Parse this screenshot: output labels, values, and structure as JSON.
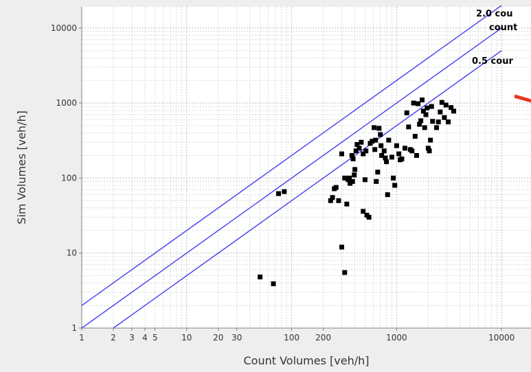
{
  "chart_data": {
    "type": "scatter",
    "xlabel": "Count Volumes [veh/h]",
    "ylabel": "Sim Volumes [veh/h]",
    "x_scale": "log",
    "y_scale": "log",
    "xlim": [
      1,
      20000
    ],
    "ylim": [
      1,
      20000
    ],
    "grid": true,
    "x_ticks": [
      {
        "value": 1,
        "label": "1"
      },
      {
        "value": 2,
        "label": "2"
      },
      {
        "value": 3,
        "label": "3"
      },
      {
        "value": 4,
        "label": "4"
      },
      {
        "value": 5,
        "label": "5"
      },
      {
        "value": 10,
        "label": "10"
      },
      {
        "value": 20,
        "label": "20"
      },
      {
        "value": 30,
        "label": "30"
      },
      {
        "value": 100,
        "label": "100"
      },
      {
        "value": 200,
        "label": "200"
      },
      {
        "value": 1000,
        "label": "1000"
      },
      {
        "value": 10000,
        "label": "10000"
      }
    ],
    "y_ticks": [
      {
        "value": 1,
        "label": "1"
      },
      {
        "value": 10,
        "label": "10"
      },
      {
        "value": 100,
        "label": "100"
      },
      {
        "value": 1000,
        "label": "1000"
      },
      {
        "value": 10000,
        "label": "10000"
      }
    ],
    "reference_lines": [
      {
        "factor": 2.0,
        "label": "2.0 cou",
        "color": "#4a4aee"
      },
      {
        "factor": 1.0,
        "label": "count",
        "color": "#4a4aee"
      },
      {
        "factor": 0.5,
        "label": "0.5 cour",
        "color": "#4a4aee"
      }
    ],
    "marker_color": "#000000",
    "annotation_color": "#ee3322",
    "points": [
      [
        50,
        4.8
      ],
      [
        67,
        3.9
      ],
      [
        75,
        62
      ],
      [
        85,
        66
      ],
      [
        235,
        50
      ],
      [
        245,
        55
      ],
      [
        255,
        72
      ],
      [
        265,
        75
      ],
      [
        280,
        50
      ],
      [
        300,
        210
      ],
      [
        300,
        12
      ],
      [
        320,
        5.5
      ],
      [
        320,
        100
      ],
      [
        335,
        45
      ],
      [
        345,
        95
      ],
      [
        355,
        100
      ],
      [
        360,
        85
      ],
      [
        375,
        200
      ],
      [
        380,
        90
      ],
      [
        385,
        180
      ],
      [
        395,
        110
      ],
      [
        400,
        130
      ],
      [
        410,
        230
      ],
      [
        420,
        280
      ],
      [
        440,
        250
      ],
      [
        460,
        300
      ],
      [
        480,
        210
      ],
      [
        480,
        36
      ],
      [
        500,
        95
      ],
      [
        510,
        230
      ],
      [
        520,
        32
      ],
      [
        545,
        30
      ],
      [
        560,
        290
      ],
      [
        585,
        310
      ],
      [
        610,
        470
      ],
      [
        620,
        240
      ],
      [
        630,
        320
      ],
      [
        640,
        90
      ],
      [
        660,
        120
      ],
      [
        680,
        460
      ],
      [
        700,
        380
      ],
      [
        710,
        270
      ],
      [
        720,
        200
      ],
      [
        760,
        230
      ],
      [
        780,
        185
      ],
      [
        800,
        165
      ],
      [
        820,
        60
      ],
      [
        840,
        320
      ],
      [
        900,
        190
      ],
      [
        930,
        100
      ],
      [
        960,
        80
      ],
      [
        1000,
        270
      ],
      [
        1050,
        210
      ],
      [
        1080,
        175
      ],
      [
        1120,
        180
      ],
      [
        1200,
        250
      ],
      [
        1250,
        740
      ],
      [
        1300,
        480
      ],
      [
        1350,
        240
      ],
      [
        1400,
        230
      ],
      [
        1450,
        1000
      ],
      [
        1500,
        360
      ],
      [
        1550,
        200
      ],
      [
        1600,
        980
      ],
      [
        1650,
        520
      ],
      [
        1700,
        580
      ],
      [
        1750,
        1100
      ],
      [
        1800,
        780
      ],
      [
        1850,
        470
      ],
      [
        1900,
        700
      ],
      [
        1950,
        860
      ],
      [
        2000,
        250
      ],
      [
        2050,
        230
      ],
      [
        2100,
        320
      ],
      [
        2150,
        900
      ],
      [
        2200,
        570
      ],
      [
        2400,
        470
      ],
      [
        2500,
        560
      ],
      [
        2600,
        760
      ],
      [
        2700,
        1020
      ],
      [
        2850,
        640
      ],
      [
        2950,
        940
      ],
      [
        3100,
        560
      ],
      [
        3300,
        870
      ],
      [
        3500,
        780
      ]
    ]
  }
}
